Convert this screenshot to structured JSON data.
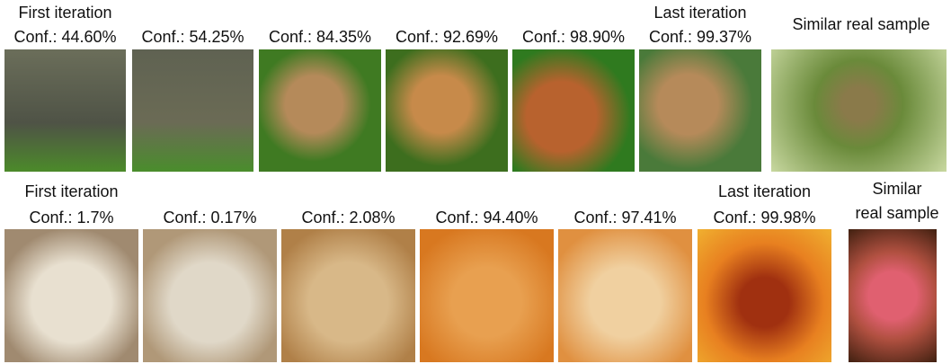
{
  "rows": [
    {
      "panels": [
        {
          "iteration": "First iteration",
          "conf": "Conf.: 44.60%"
        },
        {
          "conf": "Conf.: 54.25%"
        },
        {
          "conf": "Conf.: 84.35%"
        },
        {
          "conf": "Conf.: 92.69%"
        },
        {
          "conf": "Conf.: 98.90%"
        },
        {
          "iteration": "Last iteration",
          "conf": "Conf.: 99.37%"
        }
      ],
      "real": {
        "lines": [
          "Similar real sample"
        ]
      }
    },
    {
      "panels": [
        {
          "iteration": "First iteration",
          "conf": "Conf.: 1.7%"
        },
        {
          "conf": "Conf.: 0.17%"
        },
        {
          "conf": "Conf.: 2.08%"
        },
        {
          "conf": "Conf.: 94.40%"
        },
        {
          "conf": "Conf.: 97.41%"
        },
        {
          "iteration": "Last iteration",
          "conf": "Conf.: 99.98%"
        }
      ],
      "real": {
        "lines": [
          "Similar",
          "real sample"
        ]
      }
    }
  ]
}
